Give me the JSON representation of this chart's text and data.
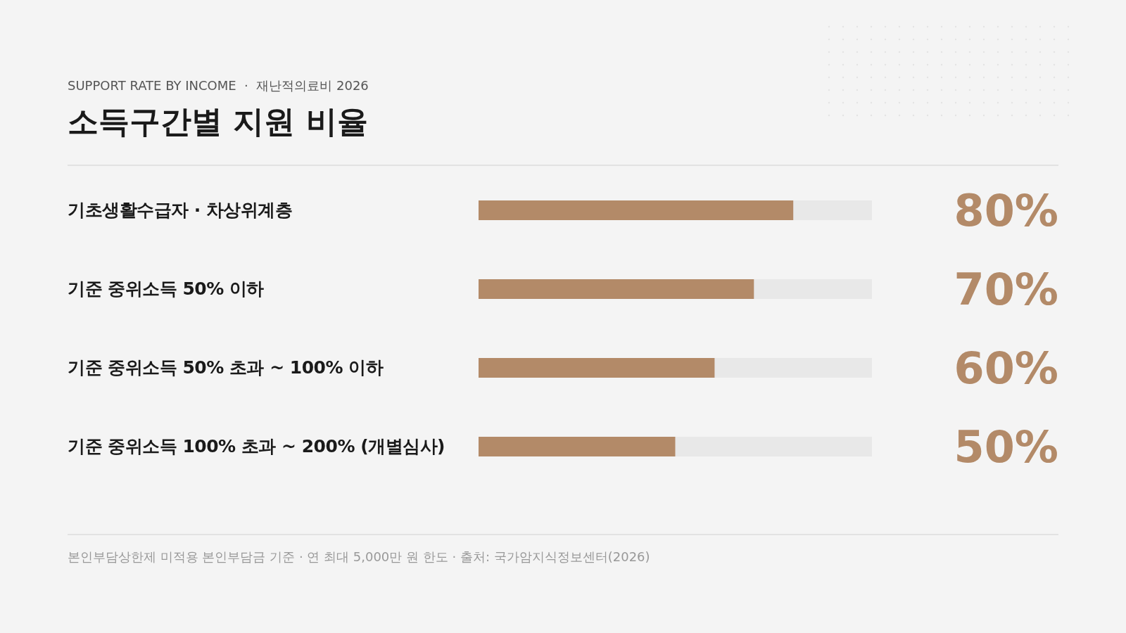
{
  "chart_data": {
    "type": "bar",
    "orientation": "horizontal",
    "subtitle": "SUPPORT RATE BY INCOME  ·  재난적의료비 2026",
    "title": "소득구간별 지원 비율",
    "categories": [
      "기초생활수급자 · 차상위계층",
      "기준 중위소득 50% 이하",
      "기준 중위소득 50% 초과 ~ 100% 이하",
      "기준 중위소득 100% 초과 ~ 200% (개별심사)"
    ],
    "values": [
      80,
      70,
      60,
      50
    ],
    "color": "#b38a68",
    "xlim": [
      0,
      100
    ],
    "data_labels": true,
    "value_labels": [
      "80%",
      "70%",
      "60%",
      "50%"
    ],
    "tick_labels": "y",
    "annotations": [
      "본인부담상한제 미적용 본인부담금 기준 · 연 최대 5,000만 원 한도 · 출처: 국가암지식정보센터(2026)"
    ]
  }
}
